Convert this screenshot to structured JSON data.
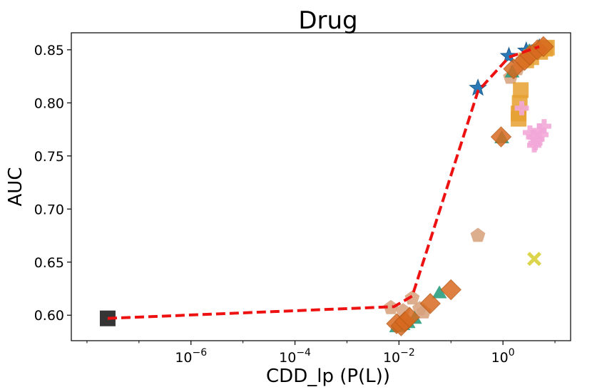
{
  "chart_data": {
    "type": "scatter",
    "title": "Drug",
    "xlabel": "CDD_lp (P(L))",
    "ylabel": "AUC",
    "xscale": "log",
    "xlim": [
      5e-09,
      20
    ],
    "ylim": [
      0.576,
      0.866
    ],
    "xticks": [
      {
        "value": 1e-06,
        "base": "10",
        "exp": "−6"
      },
      {
        "value": 0.0001,
        "base": "10",
        "exp": "−4"
      },
      {
        "value": 0.01,
        "base": "10",
        "exp": "−2"
      },
      {
        "value": 1,
        "base": "10",
        "exp": "0"
      }
    ],
    "yticks": [
      "0.60",
      "0.65",
      "0.70",
      "0.75",
      "0.80",
      "0.85"
    ],
    "grid": false,
    "frontier": {
      "color": "#ee1111",
      "x": [
        2.5e-08,
        0.008,
        0.018,
        0.33,
        1.3,
        5.0
      ],
      "y": [
        0.597,
        0.608,
        0.618,
        0.811,
        0.843,
        0.853
      ]
    },
    "series": [
      {
        "marker": "square",
        "color": "#2a2a2a",
        "points": [
          [
            2.5e-08,
            0.597
          ]
        ]
      },
      {
        "marker": "star",
        "color": "#2a7ab8",
        "points": [
          [
            0.33,
            0.814
          ],
          [
            1.3,
            0.844
          ],
          [
            2.8,
            0.849
          ],
          [
            5.0,
            0.852
          ]
        ]
      },
      {
        "marker": "pentagon",
        "color": "#d6a07a",
        "points": [
          [
            0.007,
            0.607
          ],
          [
            0.012,
            0.604
          ],
          [
            0.018,
            0.616
          ],
          [
            0.025,
            0.606
          ],
          [
            0.03,
            0.603
          ],
          [
            0.33,
            0.675
          ],
          [
            1.4,
            0.824
          ],
          [
            1.9,
            0.832
          ],
          [
            2.4,
            0.84
          ]
        ]
      },
      {
        "marker": "triangle",
        "color": "#2a9d7f",
        "points": [
          [
            0.009,
            0.588
          ],
          [
            0.012,
            0.59
          ],
          [
            0.015,
            0.592
          ],
          [
            0.02,
            0.596
          ],
          [
            0.06,
            0.62
          ],
          [
            0.95,
            0.766
          ],
          [
            1.5,
            0.828
          ],
          [
            3.2,
            0.848
          ],
          [
            6.5,
            0.851
          ]
        ]
      },
      {
        "marker": "square",
        "color": "#e6a030",
        "points": [
          [
            2.0,
            0.785
          ],
          [
            2.0,
            0.79
          ],
          [
            2.1,
            0.8
          ],
          [
            2.2,
            0.812
          ],
          [
            2.8,
            0.84
          ],
          [
            3.5,
            0.843
          ],
          [
            5.2,
            0.848
          ],
          [
            6.5,
            0.851
          ],
          [
            7.0,
            0.852
          ]
        ]
      },
      {
        "marker": "plus",
        "color": "#f2a8d8",
        "points": [
          [
            2.3,
            0.795
          ],
          [
            3.3,
            0.772
          ],
          [
            3.8,
            0.768
          ],
          [
            4.2,
            0.762
          ],
          [
            4.6,
            0.766
          ],
          [
            5.0,
            0.774
          ],
          [
            5.5,
            0.77
          ],
          [
            6.2,
            0.778
          ],
          [
            4.0,
            0.76
          ]
        ]
      },
      {
        "marker": "x",
        "color": "#d8d038",
        "points": [
          [
            4.0,
            0.653
          ]
        ]
      },
      {
        "marker": "diamond",
        "color": "#d86a20",
        "points": [
          [
            0.009,
            0.592
          ],
          [
            0.011,
            0.59
          ],
          [
            0.013,
            0.594
          ],
          [
            0.016,
            0.598
          ],
          [
            0.04,
            0.611
          ],
          [
            0.1,
            0.624
          ],
          [
            0.92,
            0.768
          ],
          [
            1.6,
            0.832
          ],
          [
            2.6,
            0.84
          ],
          [
            3.3,
            0.845
          ],
          [
            4.6,
            0.85
          ],
          [
            6.0,
            0.853
          ]
        ]
      }
    ]
  }
}
